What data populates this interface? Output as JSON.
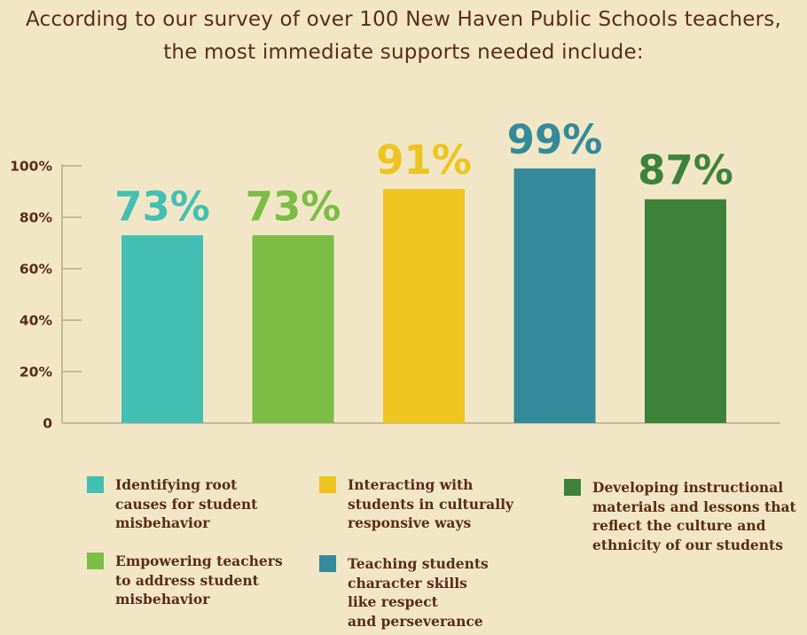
{
  "title_lines": [
    "According to our survey of over 100 New Haven Public Schools teachers,",
    "the most immediate supports needed include:"
  ],
  "chart_data": {
    "type": "bar",
    "title": "According to our survey of over 100 New Haven Public Schools teachers, the most immediate supports needed include:",
    "xlabel": "",
    "ylabel": "",
    "ylim": [
      0,
      100
    ],
    "y_ticks": [
      {
        "value": 0,
        "label": "0"
      },
      {
        "value": 20,
        "label": "20%"
      },
      {
        "value": 40,
        "label": "40%"
      },
      {
        "value": 60,
        "label": "60%"
      },
      {
        "value": 80,
        "label": "80%"
      },
      {
        "value": 100,
        "label": "100%"
      }
    ],
    "grid": false,
    "legend_placement": "bottom",
    "categories": [
      "Identifying root causes for student misbehavior",
      "Empowering teachers to address student misbehavior",
      "Interacting with students in culturally responsive ways",
      "Teaching students character skills like respect and perseverance",
      "Developing instructional materials and lessons that reflect the culture and ethnicity of our students"
    ],
    "values": [
      73,
      73,
      91,
      99,
      87
    ],
    "value_labels": [
      "73%",
      "73%",
      "91%",
      "99%",
      "87%"
    ],
    "colors": [
      "#43bfb4",
      "#7bbd45",
      "#eec41f",
      "#358a9a",
      "#3e8239"
    ]
  },
  "legend": [
    {
      "text": "Identifying root\ncauses for student\nmisbehavior",
      "color": "#43bfb4"
    },
    {
      "text": "Empowering teachers\nto address student\nmisbehavior",
      "color": "#7bbd45"
    },
    {
      "text": "Interacting with\nstudents in culturally\nresponsive ways",
      "color": "#eec41f"
    },
    {
      "text": "Teaching students\ncharacter skills\nlike respect\nand perseverance",
      "color": "#358a9a"
    },
    {
      "text": "Developing instructional\nmaterials and lessons that\nreflect the culture and\nethnicity of our students",
      "color": "#3e8239"
    }
  ],
  "colors": {
    "background": "#f1e7c6",
    "text": "#5a2d14",
    "axis": "#b9a98c"
  }
}
